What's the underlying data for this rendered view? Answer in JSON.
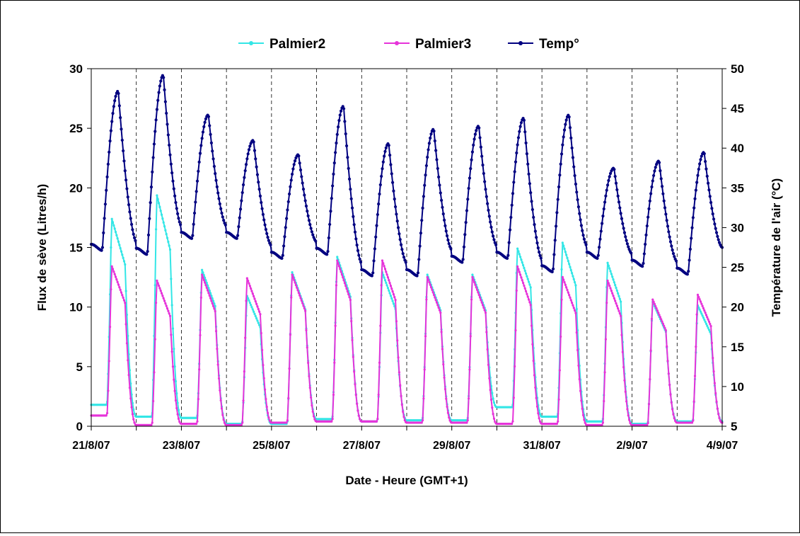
{
  "chart_data": {
    "type": "line",
    "xlabel": "Date - Heure (GMT+1)",
    "ylabel": "Flux de sève (Litres/h)",
    "y2label": "Température de l'air (°C)",
    "xlim": [
      "2007-08-21",
      "2007-09-04"
    ],
    "ylim": [
      0,
      30
    ],
    "y2lim": [
      5,
      50
    ],
    "yticks": [
      0,
      5,
      10,
      15,
      20,
      25,
      30
    ],
    "y2ticks": [
      5,
      10,
      15,
      20,
      25,
      30,
      35,
      40,
      45,
      50
    ],
    "xtick_labels": [
      "21/8/07",
      "23/8/07",
      "25/8/07",
      "27/8/07",
      "29/8/07",
      "31/8/07",
      "2/9/07",
      "4/9/07"
    ],
    "x_gridlines": [
      "2007-08-21",
      "2007-08-22",
      "2007-08-23",
      "2007-08-24",
      "2007-08-25",
      "2007-08-26",
      "2007-08-27",
      "2007-08-28",
      "2007-08-29",
      "2007-08-30",
      "2007-08-31",
      "2007-09-01",
      "2007-09-02",
      "2007-09-03",
      "2007-09-04"
    ],
    "grid": "vertical dashed",
    "legend_position": "top",
    "series": [
      {
        "name": "Palmier2",
        "axis": "left",
        "color": "#33E6E6",
        "daily": {
          "peaks": [
            17.5,
            19.5,
            13.2,
            11.0,
            13.0,
            14.3,
            13.0,
            12.8,
            12.8,
            15.0,
            15.5,
            13.8,
            10.5,
            10.2
          ],
          "night": [
            1.8,
            0.8,
            0.7,
            0.2,
            0.2,
            0.6,
            0.4,
            0.5,
            0.5,
            1.6,
            0.8,
            0.4,
            0.2,
            0.4
          ]
        }
      },
      {
        "name": "Palmier3",
        "axis": "left",
        "color": "#E633D9",
        "daily": {
          "peaks": [
            13.5,
            12.3,
            12.8,
            12.5,
            12.8,
            14.0,
            14.0,
            12.6,
            12.6,
            13.5,
            12.6,
            12.3,
            10.7,
            11.1
          ],
          "night": [
            0.9,
            0.1,
            0.2,
            0.1,
            0.3,
            0.4,
            0.4,
            0.3,
            0.3,
            0.2,
            0.2,
            0.1,
            0.1,
            0.3
          ]
        }
      },
      {
        "name": "Temp°",
        "axis": "right",
        "color": "#000080",
        "daily": {
          "max": [
            47.2,
            49.2,
            44.2,
            41.0,
            39.2,
            45.3,
            40.6,
            42.4,
            42.8,
            43.8,
            44.2,
            37.5,
            38.4,
            39.5
          ],
          "min": [
            27.5,
            27.0,
            29.0,
            29.0,
            26.5,
            27.0,
            24.3,
            24.3,
            26.0,
            26.5,
            24.8,
            26.5,
            25.5,
            24.5
          ],
          "end_value": 27.5
        }
      }
    ]
  }
}
